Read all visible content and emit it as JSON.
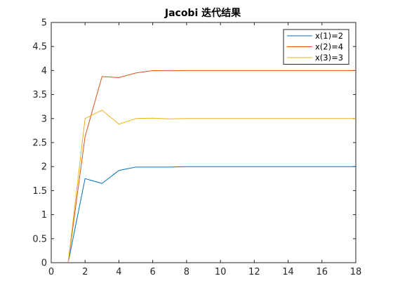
{
  "chart_data": {
    "type": "line",
    "title": "Jacobi 迭代结果",
    "xlabel": "",
    "ylabel": "",
    "xlim": [
      0,
      18
    ],
    "ylim": [
      0,
      5
    ],
    "xticks": [
      "0",
      "2",
      "4",
      "6",
      "8",
      "10",
      "12",
      "14",
      "16",
      "18"
    ],
    "yticks": [
      "0",
      "0.5",
      "1",
      "1.5",
      "2",
      "2.5",
      "3",
      "3.5",
      "4",
      "4.5",
      "5"
    ],
    "grid": false,
    "legend_position": "top-right",
    "x": [
      1,
      2,
      3,
      4,
      5,
      6,
      7,
      8,
      9,
      10,
      11,
      12,
      13,
      14,
      15,
      16,
      17,
      18
    ],
    "series": [
      {
        "name": "x(1)=2",
        "color": "#0072BD",
        "values": [
          0,
          1.75,
          1.65,
          1.92,
          1.99,
          1.99,
          1.99,
          2.0,
          2.0,
          2.0,
          2.0,
          2.0,
          2.0,
          2.0,
          2.0,
          2.0,
          2.0,
          2.0
        ]
      },
      {
        "name": "x(2)=4",
        "color": "#D95319",
        "values": [
          0,
          2.625,
          3.875,
          3.852,
          3.949,
          3.999,
          3.995,
          4.0,
          4.0,
          4.0,
          4.0,
          4.0,
          4.0,
          4.0,
          4.0,
          4.0,
          4.0,
          4.0
        ]
      },
      {
        "name": "x(3)=3",
        "color": "#EDB120",
        "values": [
          0,
          3.0,
          3.175,
          2.884,
          3.0,
          3.008,
          2.994,
          3.0,
          3.0,
          3.0,
          3.0,
          3.0,
          3.0,
          3.0,
          3.0,
          3.0,
          3.0,
          3.0
        ]
      }
    ]
  }
}
